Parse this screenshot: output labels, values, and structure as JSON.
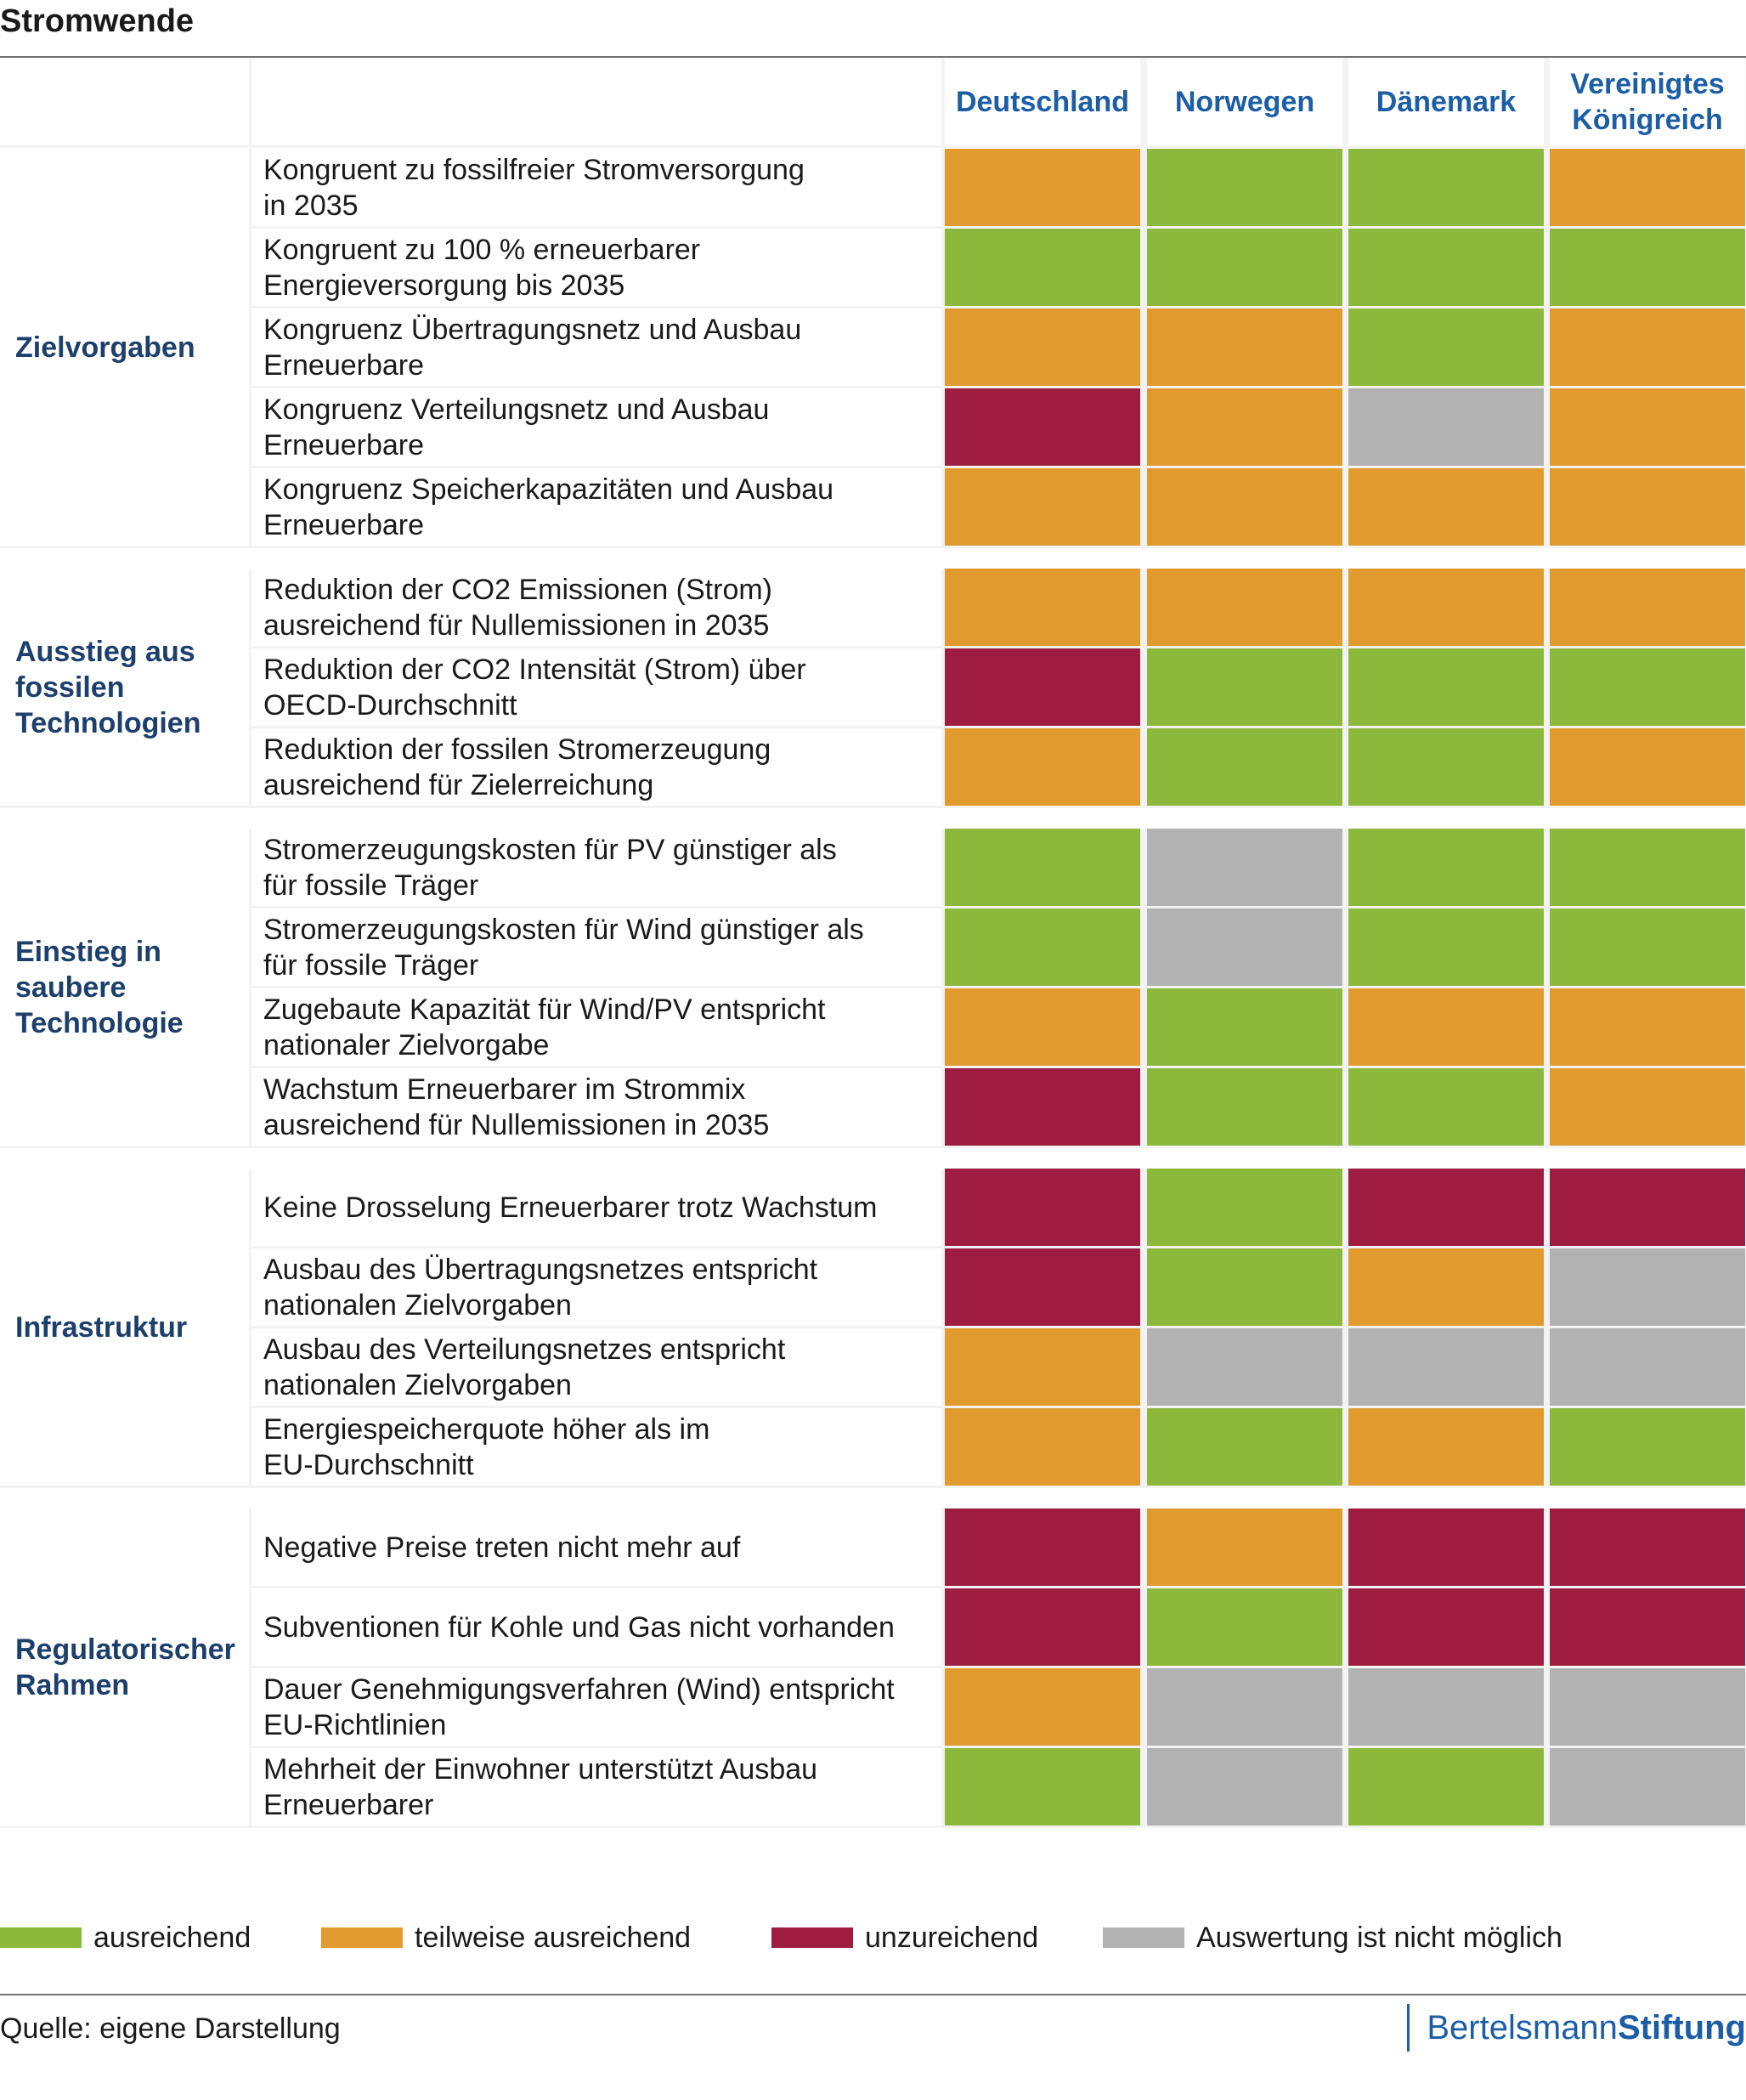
{
  "title": "Stromwende",
  "chart_data": {
    "type": "table",
    "columns": [
      "Deutschland",
      "Norwegen",
      "Dänemark",
      "Vereinigtes\nKönigreich"
    ],
    "colors": {
      "ausreichend": "#8cb83c",
      "teilweise": "#e09a2e",
      "unzureichend": "#9e1c40",
      "nicht_moeglich": "#b2b2b2"
    },
    "groups": [
      {
        "name": "Zielvorgaben",
        "rows": [
          {
            "label": "Kongruent zu fossilfreier Stromversorgung\nin 2035",
            "ratings": [
              "teilweise",
              "ausreichend",
              "ausreichend",
              "teilweise"
            ]
          },
          {
            "label": "Kongruent zu 100 % erneuerbarer\nEnergieversorgung bis 2035",
            "ratings": [
              "ausreichend",
              "ausreichend",
              "ausreichend",
              "ausreichend"
            ]
          },
          {
            "label": "Kongruenz Übertragungsnetz und Ausbau\nErneuerbare",
            "ratings": [
              "teilweise",
              "teilweise",
              "ausreichend",
              "teilweise"
            ]
          },
          {
            "label": "Kongruenz Verteilungsnetz und Ausbau\nErneuerbare",
            "ratings": [
              "unzureichend",
              "teilweise",
              "nicht_moeglich",
              "teilweise"
            ]
          },
          {
            "label": "Kongruenz Speicherkapazitäten und Ausbau\nErneuerbare",
            "ratings": [
              "teilweise",
              "teilweise",
              "teilweise",
              "teilweise"
            ]
          }
        ]
      },
      {
        "name": "Ausstieg aus\nfossilen\nTechnologien",
        "rows": [
          {
            "label": "Reduktion der CO2 Emissionen (Strom)\nausreichend für Nullemissionen in 2035",
            "ratings": [
              "teilweise",
              "teilweise",
              "teilweise",
              "teilweise"
            ]
          },
          {
            "label": "Reduktion der CO2 Intensität (Strom) über\nOECD-Durchschnitt",
            "ratings": [
              "unzureichend",
              "ausreichend",
              "ausreichend",
              "ausreichend"
            ]
          },
          {
            "label": "Reduktion der fossilen Stromerzeugung\nausreichend für Zielerreichung",
            "ratings": [
              "teilweise",
              "ausreichend",
              "ausreichend",
              "teilweise"
            ]
          }
        ]
      },
      {
        "name": "Einstieg in\nsaubere\nTechnologie",
        "rows": [
          {
            "label": "Stromerzeugungskosten für PV günstiger als\nfür fossile Träger",
            "ratings": [
              "ausreichend",
              "nicht_moeglich",
              "ausreichend",
              "ausreichend"
            ]
          },
          {
            "label": "Stromerzeugungskosten für Wind günstiger als\nfür fossile Träger",
            "ratings": [
              "ausreichend",
              "nicht_moeglich",
              "ausreichend",
              "ausreichend"
            ]
          },
          {
            "label": "Zugebaute Kapazität für Wind/PV entspricht\nnationaler Zielvorgabe",
            "ratings": [
              "teilweise",
              "ausreichend",
              "teilweise",
              "teilweise"
            ]
          },
          {
            "label": "Wachstum Erneuerbarer im Strommix\nausreichend für Nullemissionen in 2035",
            "ratings": [
              "unzureichend",
              "ausreichend",
              "ausreichend",
              "teilweise"
            ]
          }
        ]
      },
      {
        "name": "Infrastruktur",
        "rows": [
          {
            "label": "Keine Drosselung Erneuerbarer trotz Wachstum",
            "ratings": [
              "unzureichend",
              "ausreichend",
              "unzureichend",
              "unzureichend"
            ]
          },
          {
            "label": "Ausbau des Übertragungsnetzes entspricht\nnationalen Zielvorgaben",
            "ratings": [
              "unzureichend",
              "ausreichend",
              "teilweise",
              "nicht_moeglich"
            ]
          },
          {
            "label": "Ausbau des Verteilungsnetzes entspricht\nnationalen Zielvorgaben",
            "ratings": [
              "teilweise",
              "nicht_moeglich",
              "nicht_moeglich",
              "nicht_moeglich"
            ]
          },
          {
            "label": "Energiespeicherquote höher als im\nEU-Durchschnitt",
            "ratings": [
              "teilweise",
              "ausreichend",
              "teilweise",
              "ausreichend"
            ]
          }
        ]
      },
      {
        "name": "Regulatorischer\nRahmen",
        "rows": [
          {
            "label": "Negative Preise treten nicht mehr auf",
            "ratings": [
              "unzureichend",
              "teilweise",
              "unzureichend",
              "unzureichend"
            ]
          },
          {
            "label": "Subventionen für Kohle und Gas nicht vorhanden",
            "ratings": [
              "unzureichend",
              "ausreichend",
              "unzureichend",
              "unzureichend"
            ]
          },
          {
            "label": "Dauer Genehmigungsverfahren (Wind) entspricht\nEU-Richtlinien",
            "ratings": [
              "teilweise",
              "nicht_moeglich",
              "nicht_moeglich",
              "nicht_moeglich"
            ]
          },
          {
            "label": "Mehrheit der Einwohner unterstützt Ausbau\nErneuerbarer",
            "ratings": [
              "ausreichend",
              "nicht_moeglich",
              "ausreichend",
              "nicht_moeglich"
            ]
          }
        ]
      }
    ],
    "legend": [
      {
        "key": "ausreichend",
        "label": "ausreichend"
      },
      {
        "key": "teilweise",
        "label": "teilweise ausreichend"
      },
      {
        "key": "unzureichend",
        "label": "unzureichend"
      },
      {
        "key": "nicht_moeglich",
        "label": "Auswertung ist nicht möglich"
      }
    ]
  },
  "source": "Quelle: eigene Darstellung",
  "brand": {
    "part1": "Bertelsmann",
    "part2": "Stiftung"
  }
}
